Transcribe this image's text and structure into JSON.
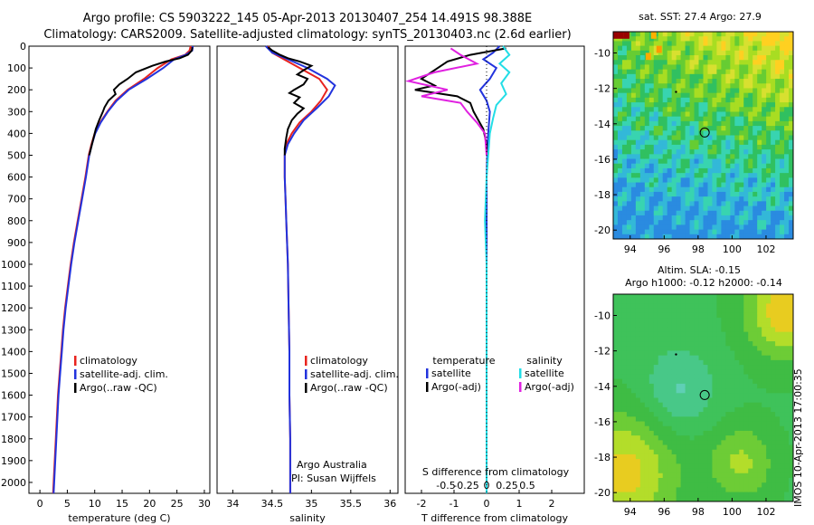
{
  "header": {
    "line1": "Argo profile: CS 5903222_145 05-Apr-2013 20130407_254 14.491S 98.388E",
    "line2": "Climatology: CARS2009. Satellite-adjusted climatology: synTS_20130403.nc (2.6d earlier)"
  },
  "side_label": "IMOS 10-Apr-2013 17:00:35",
  "colors": {
    "clim": "#e8231e",
    "sat": "#2233dd",
    "argo": "#000000",
    "sal_sat": "#22dde6",
    "sal_argo": "#e020e0"
  },
  "chart_data": [
    {
      "id": "temperature",
      "type": "line",
      "xlabel": "temperature (deg C)",
      "ylabel": "",
      "xlim": [
        -2,
        31
      ],
      "ylim": [
        2050,
        0
      ],
      "xticks": [
        0,
        5,
        10,
        15,
        20,
        25,
        30
      ],
      "yticks": [
        0,
        100,
        200,
        300,
        400,
        500,
        600,
        700,
        800,
        900,
        1000,
        1100,
        1200,
        1300,
        1400,
        1500,
        1600,
        1700,
        1800,
        1900,
        2000
      ],
      "legend": [
        "climatology",
        "satellite-adj. clim.",
        "Argo(..raw -QC)"
      ],
      "series": [
        {
          "name": "climatology",
          "color_key": "clim",
          "points": [
            [
              27.5,
              0
            ],
            [
              27.3,
              20
            ],
            [
              26.5,
              40
            ],
            [
              24,
              60
            ],
            [
              21.5,
              100
            ],
            [
              19,
              150
            ],
            [
              16,
              200
            ],
            [
              13.8,
              250
            ],
            [
              12.3,
              300
            ],
            [
              11,
              350
            ],
            [
              10,
              400
            ],
            [
              9.4,
              450
            ],
            [
              8.9,
              500
            ],
            [
              8.3,
              600
            ],
            [
              7.6,
              700
            ],
            [
              6.9,
              800
            ],
            [
              6.2,
              900
            ],
            [
              5.6,
              1000
            ],
            [
              5.1,
              1100
            ],
            [
              4.6,
              1200
            ],
            [
              4.2,
              1300
            ],
            [
              3.9,
              1400
            ],
            [
              3.6,
              1500
            ],
            [
              3.3,
              1600
            ],
            [
              3.1,
              1700
            ],
            [
              2.9,
              1800
            ],
            [
              2.7,
              1900
            ],
            [
              2.5,
              2000
            ],
            [
              2.4,
              2050
            ]
          ]
        },
        {
          "name": "satellite-adj. clim.",
          "color_key": "sat",
          "points": [
            [
              27.9,
              0
            ],
            [
              27.8,
              20
            ],
            [
              26.6,
              40
            ],
            [
              24.5,
              60
            ],
            [
              22.5,
              100
            ],
            [
              19.5,
              150
            ],
            [
              16.2,
              200
            ],
            [
              14,
              250
            ],
            [
              12.4,
              300
            ],
            [
              11.1,
              350
            ],
            [
              10.1,
              400
            ],
            [
              9.5,
              450
            ],
            [
              9,
              500
            ],
            [
              8.4,
              600
            ],
            [
              7.7,
              700
            ],
            [
              7,
              800
            ],
            [
              6.3,
              900
            ],
            [
              5.7,
              1000
            ],
            [
              5.2,
              1100
            ],
            [
              4.7,
              1200
            ],
            [
              4.3,
              1300
            ],
            [
              4,
              1400
            ],
            [
              3.7,
              1500
            ],
            [
              3.4,
              1600
            ],
            [
              3.2,
              1700
            ],
            [
              3,
              1800
            ],
            [
              2.8,
              1900
            ],
            [
              2.6,
              2000
            ],
            [
              2.5,
              2050
            ]
          ]
        },
        {
          "name": "Argo(..raw -QC)",
          "color_key": "argo",
          "points": [
            [
              27.8,
              5
            ],
            [
              27.7,
              20
            ],
            [
              27,
              40
            ],
            [
              25.5,
              55
            ],
            [
              23,
              70
            ],
            [
              20.5,
              90
            ],
            [
              17.5,
              120
            ],
            [
              16,
              150
            ],
            [
              14.5,
              175
            ],
            [
              13.5,
              200
            ],
            [
              13.8,
              220
            ],
            [
              12.5,
              250
            ],
            [
              11.8,
              280
            ],
            [
              11.5,
              300
            ],
            [
              10.8,
              340
            ],
            [
              10.2,
              380
            ],
            [
              9.8,
              420
            ],
            [
              9.3,
              470
            ],
            [
              9,
              500
            ]
          ]
        }
      ]
    },
    {
      "id": "salinity",
      "type": "line",
      "xlabel": "salinity",
      "ylabel": "",
      "xlim": [
        33.8,
        36.1
      ],
      "ylim": [
        2050,
        0
      ],
      "xticks": [
        34,
        34.5,
        35,
        35.5,
        36
      ],
      "legend": [
        "climatology",
        "satellite-adj. clim.",
        "Argo(..raw -QC)"
      ],
      "annotations": [
        "Argo Australia",
        "PI: Susan Wijffels"
      ],
      "series": [
        {
          "name": "climatology",
          "color_key": "clim",
          "points": [
            [
              34.45,
              0
            ],
            [
              34.5,
              30
            ],
            [
              34.65,
              60
            ],
            [
              34.85,
              100
            ],
            [
              35.1,
              150
            ],
            [
              35.2,
              200
            ],
            [
              35.12,
              250
            ],
            [
              35,
              300
            ],
            [
              34.85,
              350
            ],
            [
              34.75,
              400
            ],
            [
              34.68,
              450
            ],
            [
              34.66,
              500
            ],
            [
              34.66,
              600
            ],
            [
              34.67,
              700
            ],
            [
              34.68,
              800
            ],
            [
              34.69,
              900
            ],
            [
              34.7,
              1000
            ],
            [
              34.71,
              1200
            ],
            [
              34.72,
              1400
            ],
            [
              34.72,
              1600
            ],
            [
              34.73,
              1800
            ],
            [
              34.73,
              2000
            ],
            [
              34.73,
              2050
            ]
          ]
        },
        {
          "name": "satellite-adj. clim.",
          "color_key": "sat",
          "points": [
            [
              34.42,
              0
            ],
            [
              34.5,
              30
            ],
            [
              34.7,
              60
            ],
            [
              34.95,
              100
            ],
            [
              35.2,
              150
            ],
            [
              35.3,
              180
            ],
            [
              35.22,
              230
            ],
            [
              35.08,
              280
            ],
            [
              34.9,
              340
            ],
            [
              34.78,
              400
            ],
            [
              34.7,
              450
            ],
            [
              34.66,
              500
            ],
            [
              34.66,
              600
            ],
            [
              34.67,
              700
            ],
            [
              34.68,
              800
            ],
            [
              34.69,
              900
            ],
            [
              34.7,
              1000
            ],
            [
              34.71,
              1200
            ],
            [
              34.72,
              1400
            ],
            [
              34.72,
              1600
            ],
            [
              34.73,
              1800
            ],
            [
              34.73,
              2000
            ],
            [
              34.73,
              2050
            ]
          ]
        },
        {
          "name": "Argo(..raw -QC)",
          "color_key": "argo",
          "points": [
            [
              34.45,
              5
            ],
            [
              34.5,
              20
            ],
            [
              34.6,
              40
            ],
            [
              34.7,
              55
            ],
            [
              34.85,
              70
            ],
            [
              35.0,
              90
            ],
            [
              34.9,
              110
            ],
            [
              34.82,
              130
            ],
            [
              34.95,
              150
            ],
            [
              34.9,
              175
            ],
            [
              34.78,
              200
            ],
            [
              34.72,
              215
            ],
            [
              34.85,
              235
            ],
            [
              34.78,
              260
            ],
            [
              34.9,
              285
            ],
            [
              34.82,
              310
            ],
            [
              34.75,
              340
            ],
            [
              34.7,
              380
            ],
            [
              34.68,
              420
            ],
            [
              34.66,
              470
            ],
            [
              34.66,
              500
            ]
          ]
        }
      ]
    },
    {
      "id": "difference",
      "type": "line",
      "xlabel": "T difference from climatology",
      "xlabel_top": "S difference from climatology",
      "xlim": [
        -2.5,
        3
      ],
      "ylim": [
        2050,
        0
      ],
      "xticks": [
        -2,
        -1,
        0,
        1,
        2
      ],
      "xticks_top": [
        {
          "value": -1.25,
          "label": "-0.5"
        },
        {
          "value": -0.625,
          "label": "-0.25"
        },
        {
          "value": 0,
          "label": "0"
        },
        {
          "value": 0.625,
          "label": "0.25"
        },
        {
          "value": 1.25,
          "label": "0.5"
        }
      ],
      "legend_headers": [
        "temperature",
        "salinity"
      ],
      "legend": [
        "satellite",
        "Argo(-adj)",
        "satellite",
        "Argo(-adj)"
      ],
      "series": [
        {
          "name": "T satellite",
          "color_key": "sat",
          "points": [
            [
              0.4,
              0
            ],
            [
              0.2,
              30
            ],
            [
              -0.1,
              60
            ],
            [
              0.3,
              100
            ],
            [
              0.1,
              150
            ],
            [
              -0.2,
              200
            ],
            [
              0,
              250
            ],
            [
              0.1,
              300
            ],
            [
              0.05,
              400
            ],
            [
              0.02,
              500
            ],
            [
              0,
              600
            ],
            [
              0,
              800
            ],
            [
              0,
              1000
            ],
            [
              0,
              1500
            ],
            [
              0,
              2000
            ],
            [
              0,
              2050
            ]
          ]
        },
        {
          "name": "T Argo(-adj)",
          "color_key": "argo",
          "points": [
            [
              0.6,
              10
            ],
            [
              -0.5,
              40
            ],
            [
              -1.2,
              70
            ],
            [
              -2,
              150
            ],
            [
              -1.6,
              180
            ],
            [
              -2.2,
              200
            ],
            [
              -0.9,
              230
            ],
            [
              -0.5,
              260
            ],
            [
              -0.4,
              300
            ],
            [
              -0.1,
              380
            ],
            [
              0,
              450
            ],
            [
              0,
              500
            ]
          ]
        },
        {
          "name": "S satellite",
          "color_key": "sal_sat",
          "points": [
            [
              0.5,
              0
            ],
            [
              0.7,
              40
            ],
            [
              0.4,
              80
            ],
            [
              0.7,
              120
            ],
            [
              0.45,
              170
            ],
            [
              0.6,
              220
            ],
            [
              0.3,
              270
            ],
            [
              0.2,
              330
            ],
            [
              0.1,
              400
            ],
            [
              0.05,
              500
            ],
            [
              0,
              600
            ],
            [
              -0.05,
              800
            ],
            [
              0,
              1000
            ],
            [
              0,
              1500
            ],
            [
              0,
              2000
            ],
            [
              0,
              2050
            ]
          ]
        },
        {
          "name": "S Argo(-adj)",
          "color_key": "sal_argo",
          "points": [
            [
              -1.1,
              10
            ],
            [
              -0.8,
              40
            ],
            [
              -0.3,
              80
            ],
            [
              -1.6,
              120
            ],
            [
              -2.4,
              160
            ],
            [
              -1.2,
              200
            ],
            [
              -2.0,
              230
            ],
            [
              -0.8,
              260
            ],
            [
              -0.6,
              300
            ],
            [
              -0.3,
              350
            ],
            [
              -0.05,
              400
            ],
            [
              0,
              500
            ]
          ]
        }
      ]
    },
    {
      "id": "sst_map",
      "type": "heatmap",
      "title": "sat. SST: 27.4  Argo: 27.9",
      "xlim": [
        93,
        103.6
      ],
      "ylim": [
        -20.5,
        -8.8
      ],
      "xticks": [
        94,
        96,
        98,
        100,
        102
      ],
      "yticks": [
        -10,
        -12,
        -14,
        -16,
        -18,
        -20
      ],
      "marker": {
        "lon": 98.388,
        "lat": -14.491
      }
    },
    {
      "id": "sla_map",
      "type": "heatmap",
      "title": "Altim. SLA: -0.15",
      "subtitle": "Argo h1000: -0.12 h2000: -0.14",
      "xlim": [
        93,
        103.6
      ],
      "ylim": [
        -20.5,
        -8.8
      ],
      "xticks": [
        94,
        96,
        98,
        100,
        102
      ],
      "yticks": [
        -10,
        -12,
        -14,
        -16,
        -18,
        -20
      ],
      "marker": {
        "lon": 98.388,
        "lat": -14.491
      }
    }
  ]
}
